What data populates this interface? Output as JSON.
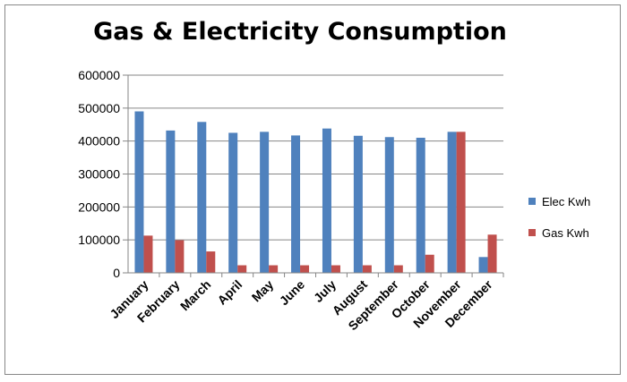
{
  "chart_data": {
    "type": "bar",
    "title": "Gas & Electricity Consumption",
    "xlabel": "",
    "ylabel": "",
    "ylim": [
      0,
      600000
    ],
    "yticks": [
      0,
      100000,
      200000,
      300000,
      400000,
      500000,
      600000
    ],
    "grid": true,
    "legend_position": "right",
    "categories": [
      "January",
      "February",
      "March",
      "April",
      "May",
      "June",
      "July",
      "August",
      "September",
      "October",
      "November",
      "December"
    ],
    "series": [
      {
        "name": "Elec Kwh",
        "color": "#4f81bd",
        "values": [
          490000,
          432000,
          458000,
          425000,
          428000,
          417000,
          438000,
          416000,
          412000,
          410000,
          428000,
          48000
        ]
      },
      {
        "name": "Gas Kwh",
        "color": "#c0504d",
        "values": [
          113000,
          99000,
          65000,
          23000,
          23000,
          23000,
          23000,
          23000,
          23000,
          55000,
          428000,
          116000
        ]
      }
    ]
  }
}
